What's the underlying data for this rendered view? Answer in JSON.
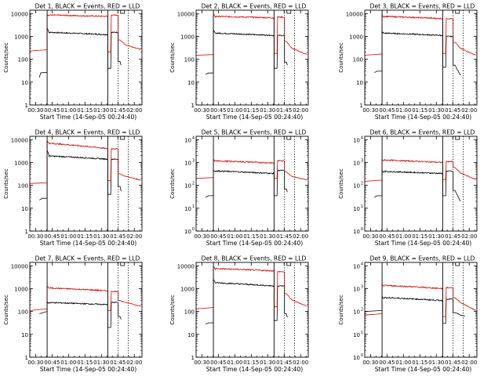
{
  "colors": {
    "events": "#000000",
    "lld": "#dd0000",
    "axis": "#000000",
    "background": "#ffffff"
  },
  "common": {
    "xlabel": "Start Time (14-Sep-05 00:24:40)",
    "ylabel": "Counts/sec",
    "x_tick_labels": [
      "00:30",
      "00:45",
      "01:00",
      "01:15",
      "01:30",
      "01:45",
      "02:00"
    ],
    "x_ticks_min": [
      30,
      45,
      60,
      75,
      90,
      105,
      120
    ],
    "xlim_min": [
      24.7,
      127
    ],
    "solid_vlines_min": [
      40.5,
      95.8
    ],
    "dotted_vlines_min": [
      105.3,
      114.5
    ],
    "linear_y_ticks": [
      "1",
      "10",
      "100",
      "1000",
      "10000"
    ],
    "exp_y_ticks": [
      "10",
      "10",
      "10",
      "10",
      "10"
    ],
    "exp_y_exponents": [
      "0",
      "1",
      "2",
      "3",
      "4"
    ],
    "ylim": [
      1,
      14000
    ],
    "log_scale": true,
    "grid": false
  },
  "chart_data": [
    {
      "type": "line",
      "title": "Det 1, BLACK = Events, RED = LLD",
      "tick_style": "linear",
      "series": [
        {
          "color": "black",
          "seg": [
            [
              33.5,
              16
            ],
            [
              34.5,
              25
            ],
            [
              36,
              26
            ]
          ],
          "main": 1400,
          "rise": 2300,
          "end": 1200,
          "notch": 40,
          "peak2": 1500,
          "tail": [
            [
              107,
              80
            ],
            [
              108,
              55
            ]
          ]
        },
        {
          "color": "red",
          "seg": [
            [
              24.7,
              230
            ],
            [
              40.5,
              260
            ]
          ],
          "main": 8000,
          "rise": 9000,
          "end": 7500,
          "notch": 210,
          "peak2": 8500,
          "tail": [
            [
              107,
              700
            ],
            [
              112,
              430
            ],
            [
              126,
              270
            ]
          ]
        }
      ]
    },
    {
      "type": "line",
      "title": "Det 2, BLACK = Events, RED = LLD",
      "tick_style": "linear",
      "series": [
        {
          "color": "black",
          "seg": [
            [
              33.5,
              22
            ],
            [
              36,
              25
            ]
          ],
          "main": 1300,
          "rise": 1800,
          "end": 1100,
          "notch": 40,
          "peak2": 1100,
          "tail": [
            [
              107,
              75
            ],
            [
              108,
              55
            ]
          ]
        },
        {
          "color": "red",
          "seg": [
            [
              24.7,
              150
            ],
            [
              40.5,
              160
            ]
          ],
          "main": 7000,
          "rise": 9000,
          "end": 6500,
          "notch": 180,
          "peak2": 7000,
          "tail": [
            [
              107,
              600
            ],
            [
              112,
              300
            ],
            [
              126,
              160
            ]
          ]
        }
      ]
    },
    {
      "type": "line",
      "title": "Det 3, BLACK = Events, RED = LLD",
      "tick_style": "linear",
      "series": [
        {
          "color": "black",
          "seg": [
            [
              33.5,
              26
            ],
            [
              36,
              30
            ]
          ],
          "main": 1300,
          "rise": 1600,
          "end": 1100,
          "notch": 45,
          "peak2": 1000,
          "tail": [
            [
              107,
              55
            ],
            [
              112,
              20
            ]
          ]
        },
        {
          "color": "red",
          "seg": [
            [
              24.7,
              150
            ],
            [
              40.5,
              170
            ]
          ],
          "main": 7000,
          "rise": 8000,
          "end": 6000,
          "notch": 180,
          "peak2": 6000,
          "tail": [
            [
              107,
              550
            ],
            [
              112,
              300
            ],
            [
              126,
              150
            ]
          ]
        }
      ]
    },
    {
      "type": "line",
      "title": "Det 4, BLACK = Events, RED = LLD",
      "tick_style": "linear",
      "series": [
        {
          "color": "black",
          "seg": [
            [
              33.5,
              23
            ],
            [
              36,
              27
            ]
          ],
          "main": 1800,
          "rise": 3500,
          "end": 1400,
          "notch": 40,
          "peak2": 1400,
          "tail": [
            [
              107,
              90
            ],
            [
              108,
              55
            ]
          ]
        },
        {
          "color": "red",
          "seg": [
            [
              24.7,
              120
            ],
            [
              40.5,
              130
            ]
          ],
          "main": 6500,
          "rise": 9000,
          "end": 4000,
          "notch": 160,
          "peak2": 4000,
          "tail": [
            [
              107,
              320
            ],
            [
              112,
              250
            ],
            [
              126,
              170
            ]
          ]
        }
      ]
    },
    {
      "type": "line",
      "title": "Det 5, BLACK = Events, RED = LLD",
      "tick_style": "exponent",
      "series": [
        {
          "color": "black",
          "seg": [
            [
              33.5,
              30
            ],
            [
              36,
              35
            ]
          ],
          "main": 400,
          "rise": 450,
          "end": 330,
          "notch": 35,
          "peak2": 450,
          "tail": [
            [
              107,
              70
            ],
            [
              108,
              50
            ]
          ]
        },
        {
          "color": "red",
          "seg": [
            [
              24.7,
              200
            ],
            [
              40.5,
              220
            ]
          ],
          "main": 1100,
          "rise": 1300,
          "end": 950,
          "notch": 200,
          "peak2": 1200,
          "tail": [
            [
              107,
              400
            ],
            [
              112,
              250
            ],
            [
              126,
              170
            ]
          ]
        }
      ]
    },
    {
      "type": "line",
      "title": "Det 6, BLACK = Events, RED = LLD",
      "tick_style": "exponent",
      "series": [
        {
          "color": "black",
          "seg": [
            [
              33.5,
              30
            ],
            [
              36,
              35
            ]
          ],
          "main": 380,
          "rise": 420,
          "end": 330,
          "notch": 35,
          "peak2": 420,
          "tail": [
            [
              107,
              60
            ],
            [
              112,
              20
            ]
          ]
        },
        {
          "color": "red",
          "seg": [
            [
              24.7,
              150
            ],
            [
              40.5,
              170
            ]
          ],
          "main": 1200,
          "rise": 1300,
          "end": 1000,
          "notch": 180,
          "peak2": 1100,
          "tail": [
            [
              107,
              600
            ],
            [
              112,
              350
            ],
            [
              126,
              180
            ]
          ]
        }
      ]
    },
    {
      "type": "line",
      "title": "Det 7, BLACK = Events, RED = LLD",
      "tick_style": "linear",
      "series": [
        {
          "color": "black",
          "seg": [
            [
              33.5,
              80
            ],
            [
              40.5,
              100
            ]
          ],
          "main": 230,
          "rise": 250,
          "end": 200,
          "notch": 20,
          "peak2": 250,
          "tail": [
            [
              107,
              60
            ],
            [
              108,
              45
            ]
          ]
        },
        {
          "color": "red",
          "seg": [
            [
              24.7,
              110
            ],
            [
              40.5,
              130
            ]
          ],
          "main": 1000,
          "rise": 1300,
          "end": 800,
          "notch": 110,
          "peak2": 750,
          "tail": [
            [
              107,
              300
            ],
            [
              112,
              250
            ],
            [
              126,
              170
            ]
          ]
        }
      ]
    },
    {
      "type": "line",
      "title": "Det 8, BLACK = Events, RED = LLD",
      "tick_style": "linear",
      "series": [
        {
          "color": "black",
          "seg": [
            [
              33.5,
              28
            ],
            [
              36,
              32
            ]
          ],
          "main": 1700,
          "rise": 2500,
          "end": 1300,
          "notch": 40,
          "peak2": 1300,
          "tail": [
            [
              107,
              80
            ],
            [
              108,
              55
            ]
          ]
        },
        {
          "color": "red",
          "seg": [
            [
              24.7,
              130
            ],
            [
              40.5,
              150
            ]
          ],
          "main": 7000,
          "rise": 9000,
          "end": 6000,
          "notch": 160,
          "peak2": 5500,
          "tail": [
            [
              107,
              600
            ],
            [
              112,
              320
            ],
            [
              126,
              170
            ]
          ]
        }
      ]
    },
    {
      "type": "line",
      "title": "Det 9, BLACK = Events, RED = LLD",
      "tick_style": "exponent",
      "series": [
        {
          "color": "black",
          "seg": [
            [
              24.7,
              100
            ],
            [
              40.5,
              110
            ]
          ],
          "main": 380,
          "rise": 420,
          "end": 300,
          "notch": 30,
          "peak2": 350,
          "tail": [
            [
              107,
              90
            ],
            [
              112,
              70
            ],
            [
              116,
              60
            ]
          ]
        },
        {
          "color": "red",
          "seg": [
            [
              24.7,
              70
            ],
            [
              40.5,
              80
            ]
          ],
          "main": 1300,
          "rise": 1500,
          "end": 1000,
          "notch": 60,
          "peak2": 1100,
          "tail": [
            [
              107,
              400
            ],
            [
              112,
              250
            ],
            [
              126,
              110
            ]
          ]
        }
      ]
    }
  ]
}
